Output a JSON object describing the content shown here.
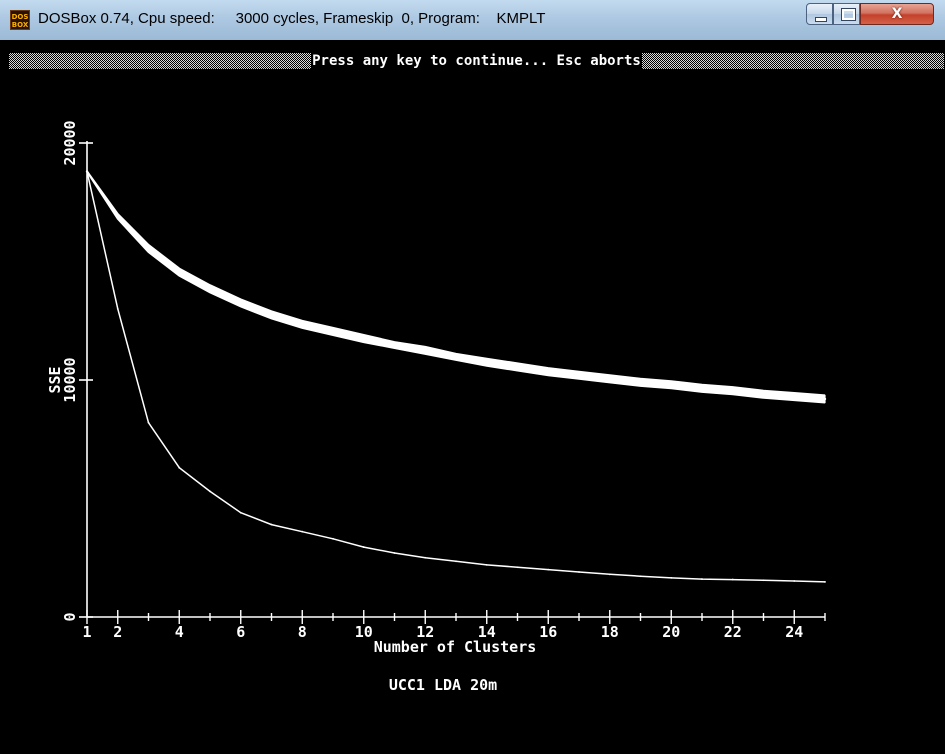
{
  "window": {
    "title": "DOSBox 0.74, Cpu speed:     3000 cycles, Frameskip  0, Program:    KMPLT",
    "icon": "dosbox-icon",
    "icon_text_line1": "DOS",
    "icon_text_line2": "BOX",
    "controls": {
      "minimize": "minimize-icon",
      "maximize": "maximize-icon",
      "close_label": "X"
    }
  },
  "status_bar": {
    "text": "Press any key to continue... Esc aborts"
  },
  "chart_data": {
    "type": "line",
    "title": "UCC1 LDA 20m",
    "xlabel": "Number of Clusters",
    "ylabel": "SSE",
    "xlim": [
      1,
      25
    ],
    "ylim": [
      0,
      20000
    ],
    "x_ticks": [
      1,
      2,
      4,
      6,
      8,
      10,
      12,
      14,
      16,
      18,
      20,
      22,
      24
    ],
    "y_ticks": [
      0,
      10000,
      20000
    ],
    "grid": false,
    "background": "#000000",
    "line_color": "#ffffff",
    "series": [
      {
        "style": "band",
        "x": [
          1,
          2,
          3,
          4,
          5,
          6,
          7,
          8,
          9,
          10,
          11,
          12,
          13,
          14,
          15,
          16,
          17,
          18,
          19,
          20,
          21,
          22,
          23,
          24,
          25
        ],
        "upper": [
          18800,
          17000,
          15700,
          14700,
          14000,
          13400,
          12900,
          12500,
          12200,
          11900,
          11600,
          11400,
          11100,
          10900,
          10700,
          10500,
          10350,
          10200,
          10050,
          9950,
          9800,
          9700,
          9550,
          9450,
          9350
        ],
        "lower": [
          18800,
          16800,
          15400,
          14400,
          13700,
          13100,
          12600,
          12200,
          11900,
          11600,
          11350,
          11100,
          10850,
          10600,
          10400,
          10200,
          10050,
          9900,
          9750,
          9650,
          9500,
          9400,
          9250,
          9150,
          9050
        ]
      },
      {
        "style": "line",
        "x": [
          1,
          2,
          3,
          4,
          5,
          6,
          7,
          8,
          9,
          10,
          11,
          12,
          13,
          14,
          15,
          16,
          17,
          18,
          19,
          20,
          21,
          22,
          23,
          24,
          25
        ],
        "values": [
          18800,
          13000,
          8200,
          6300,
          5300,
          4400,
          3900,
          3600,
          3300,
          2950,
          2700,
          2500,
          2350,
          2200,
          2100,
          2000,
          1900,
          1800,
          1720,
          1650,
          1600,
          1580,
          1550,
          1520,
          1480
        ]
      }
    ]
  }
}
